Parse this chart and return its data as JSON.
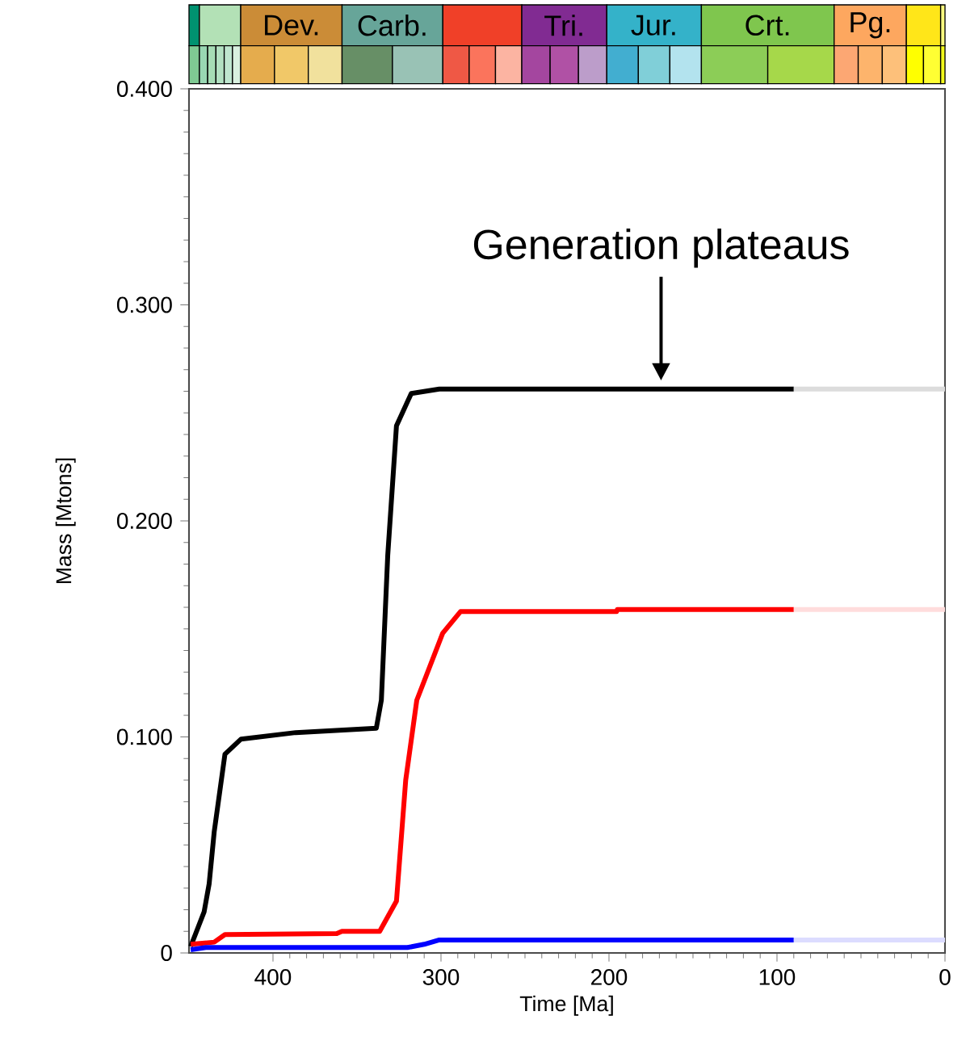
{
  "chart_data": {
    "type": "line",
    "xlabel": "Time [Ma]",
    "ylabel": "Mass [Mtons]",
    "xlim": [
      450,
      0
    ],
    "ylim": [
      0,
      0.4
    ],
    "xticks": [
      400,
      300,
      200,
      100,
      0
    ],
    "yticks": [
      0,
      {
        "value": 0.1,
        "label": "0.100"
      },
      {
        "value": 0.2,
        "label": "0.200"
      },
      {
        "value": 0.3,
        "label": "0.300"
      },
      {
        "value": 0.4,
        "label": "0.400"
      }
    ],
    "line_style": "solid",
    "marker": "none",
    "grid": false,
    "series": [
      {
        "color": "#000000",
        "x": [
          449,
          441,
          438,
          435,
          428.6,
          419,
          386.5,
          338.5,
          335.5,
          331.7,
          326.5,
          317.7,
          301,
          90
        ],
        "values": [
          0.003,
          0.019,
          0.032,
          0.056,
          0.092,
          0.099,
          0.102,
          0.104,
          0.117,
          0.184,
          0.244,
          0.259,
          0.261,
          0.261
        ]
      },
      {
        "color": "#dcdcdc",
        "x": [
          90,
          0
        ],
        "values": [
          0.261,
          0.261
        ]
      },
      {
        "color": "#ff0000",
        "x": [
          449,
          435,
          428.6,
          362,
          359,
          336.5,
          326.5,
          321,
          314.4,
          299,
          288.4,
          195.5,
          195,
          90
        ],
        "values": [
          0.004,
          0.005,
          0.0085,
          0.009,
          0.01,
          0.01,
          0.024,
          0.08,
          0.117,
          0.148,
          0.158,
          0.158,
          0.159,
          0.159
        ]
      },
      {
        "color": "#ffdcdc",
        "x": [
          90,
          0
        ],
        "values": [
          0.159,
          0.159
        ]
      },
      {
        "color": "#0000ff",
        "x": [
          449,
          440,
          320,
          310,
          301,
          90
        ],
        "values": [
          0.0015,
          0.0025,
          0.0025,
          0.004,
          0.006,
          0.006
        ]
      },
      {
        "color": "#dcdcff",
        "x": [
          90,
          0
        ],
        "values": [
          0.006,
          0.006
        ]
      }
    ],
    "annotations": [
      {
        "text": "Generation plateaus",
        "x": 169,
        "y": 0.261
      },
      "Dev.",
      "Carb.",
      "Tri.",
      "Jur.",
      "Crt.",
      "Pg."
    ]
  }
}
